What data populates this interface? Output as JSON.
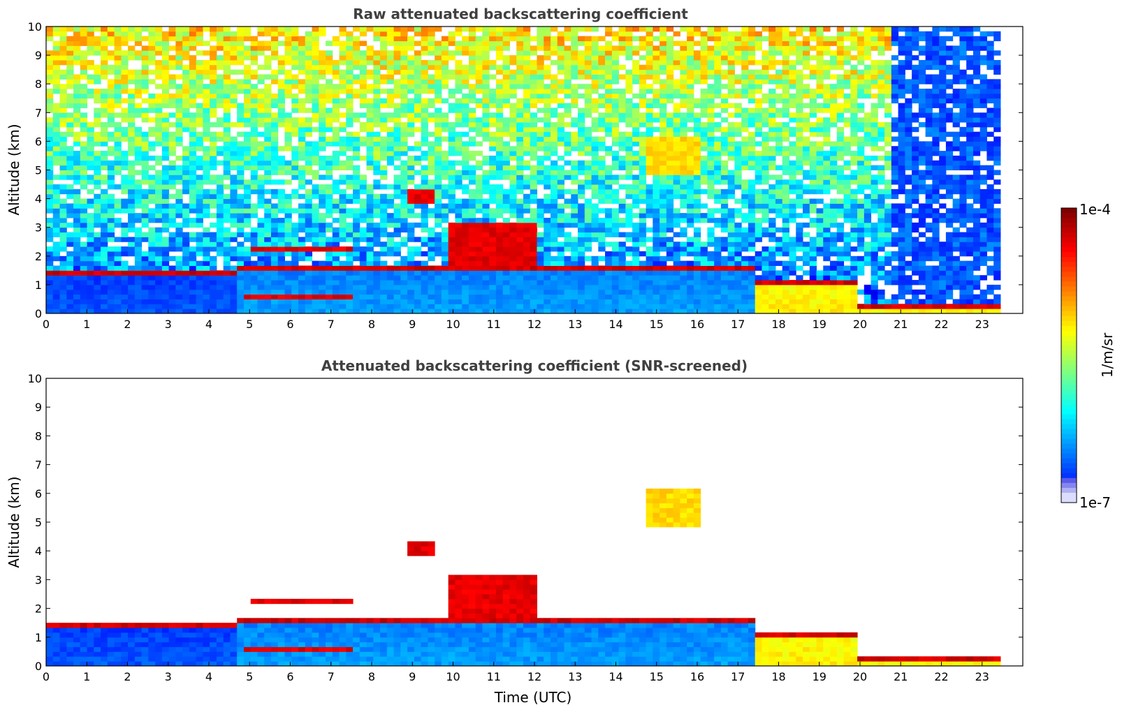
{
  "chart_data": [
    {
      "type": "heatmap",
      "title": "Raw attenuated backscattering coefficient",
      "xlabel": "",
      "ylabel": "Altitude (km)",
      "xlim": [
        0,
        24
      ],
      "ylim": [
        0,
        10
      ],
      "x_ticks": [
        "0",
        "1",
        "2",
        "3",
        "4",
        "5",
        "6",
        "7",
        "8",
        "9",
        "10",
        "11",
        "12",
        "13",
        "14",
        "15",
        "16",
        "17",
        "18",
        "19",
        "20",
        "21",
        "22",
        "23"
      ],
      "y_ticks": [
        "0",
        "1",
        "2",
        "3",
        "4",
        "5",
        "6",
        "7",
        "8",
        "9",
        "10"
      ],
      "data_end_time": 23.45,
      "noise_level": "high",
      "features": [
        {
          "t0": 0.0,
          "t1": 4.7,
          "top": 1.5,
          "base_level": "low",
          "kind": "boundary layer"
        },
        {
          "t0": 4.7,
          "t1": 17.4,
          "top": 1.6,
          "base_level": "medium",
          "kind": "boundary layer"
        },
        {
          "t0": 17.4,
          "t1": 20.0,
          "top": 1.2,
          "base_level": "high",
          "kind": "precipitation"
        },
        {
          "t0": 20.0,
          "t1": 23.45,
          "top": 0.3,
          "base_level": "high",
          "kind": "surface layer"
        },
        {
          "t0": 14.8,
          "t1": 16.0,
          "alt0": 4.9,
          "alt1": 6.2,
          "kind": "elevated aerosol"
        },
        {
          "t0": 4.9,
          "t1": 7.6,
          "alt0": 0.55,
          "alt1": 0.7,
          "kind": "thin layer"
        },
        {
          "t0": 5.0,
          "t1": 7.5,
          "alt0": 2.2,
          "alt1": 2.4,
          "kind": "cloud base"
        },
        {
          "t0": 8.8,
          "t1": 9.6,
          "alt0": 3.8,
          "alt1": 4.3,
          "kind": "cloud base"
        },
        {
          "t0": 9.8,
          "t1": 12.0,
          "alt0": 1.6,
          "alt1": 3.2,
          "kind": "cloud base"
        }
      ]
    },
    {
      "type": "heatmap",
      "title": "Attenuated backscattering coefficient (SNR-screened)",
      "xlabel": "Time (UTC)",
      "ylabel": "Altitude (km)",
      "xlim": [
        0,
        24
      ],
      "ylim": [
        0,
        10
      ],
      "x_ticks": [
        "0",
        "1",
        "2",
        "3",
        "4",
        "5",
        "6",
        "7",
        "8",
        "9",
        "10",
        "11",
        "12",
        "13",
        "14",
        "15",
        "16",
        "17",
        "18",
        "19",
        "20",
        "21",
        "22",
        "23"
      ],
      "y_ticks": [
        "0",
        "1",
        "2",
        "3",
        "4",
        "5",
        "6",
        "7",
        "8",
        "9",
        "10"
      ],
      "data_end_time": 23.45,
      "noise_level": "screened"
    }
  ],
  "colorbar": {
    "label": "1/m/sr",
    "max_label": "1e-4",
    "min_label": "1e-7",
    "scale": "log",
    "range": [
      1e-07,
      0.0001
    ],
    "colormap": "jet",
    "colors": {
      "low": "#00008f",
      "blue": "#0000ff",
      "cyan": "#00ffff",
      "yellow": "#ffff00",
      "red": "#ff0000",
      "high": "#800000"
    }
  }
}
